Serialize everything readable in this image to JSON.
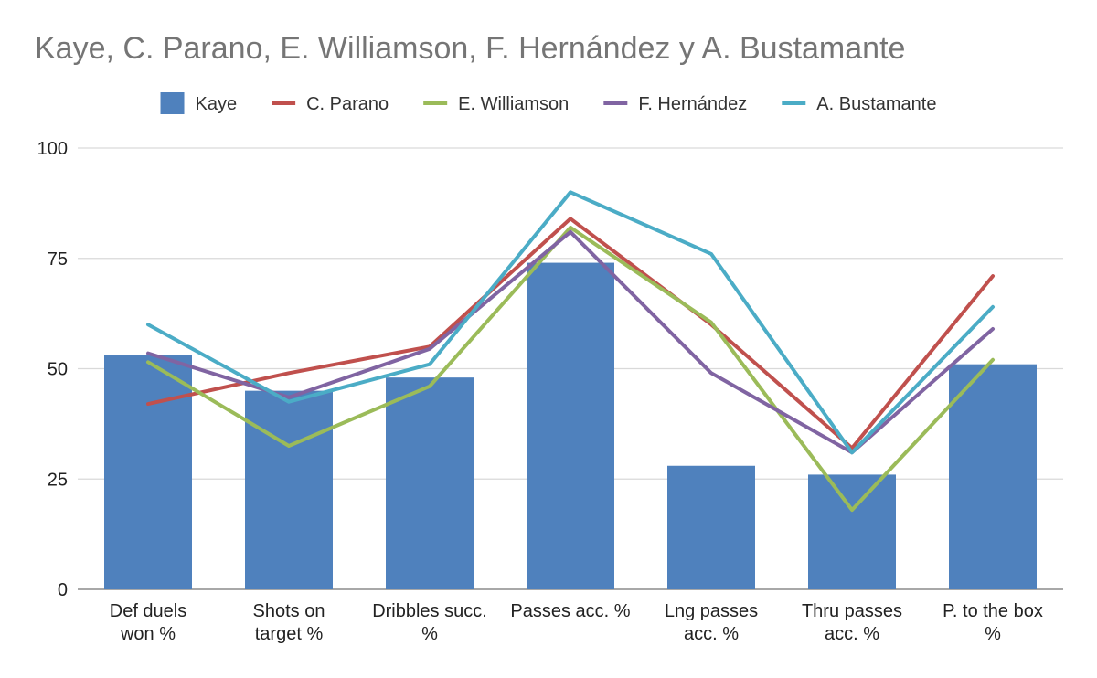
{
  "chart_data": {
    "type": "bar",
    "title": "Kaye, C. Parano, E. Williamson, F. Hernández y A. Bustamante",
    "xlabel": "",
    "ylabel": "",
    "ylim": [
      0,
      100
    ],
    "yticks": [
      0,
      25,
      50,
      75,
      100
    ],
    "grid": true,
    "legend_position": "top",
    "categories": [
      [
        "Def duels",
        "won %"
      ],
      [
        "Shots on",
        "target %"
      ],
      [
        "Dribbles succ.",
        "%"
      ],
      [
        "Passes acc. %"
      ],
      [
        "Lng passes",
        "acc. %"
      ],
      [
        "Thru passes",
        "acc. %"
      ],
      [
        "P. to the box",
        "%"
      ]
    ],
    "series": [
      {
        "name": "Kaye",
        "kind": "bar",
        "color": "#4f81bd",
        "values": [
          53,
          45,
          48,
          74,
          28,
          26,
          51
        ]
      },
      {
        "name": "C. Parano",
        "kind": "line",
        "color": "#c0504d",
        "values": [
          42,
          49,
          55,
          84,
          60,
          32,
          71
        ]
      },
      {
        "name": "E. Williamson",
        "kind": "line",
        "color": "#9bbb59",
        "values": [
          51.5,
          32.5,
          46,
          82,
          60.5,
          18,
          52
        ]
      },
      {
        "name": "F. Hernández",
        "kind": "line",
        "color": "#8064a2",
        "values": [
          53.5,
          43.5,
          54.5,
          81,
          49,
          31,
          59
        ]
      },
      {
        "name": "A. Bustamante",
        "kind": "line",
        "color": "#4bacc6",
        "values": [
          60,
          42.5,
          51,
          90,
          76,
          31,
          64
        ]
      }
    ]
  }
}
